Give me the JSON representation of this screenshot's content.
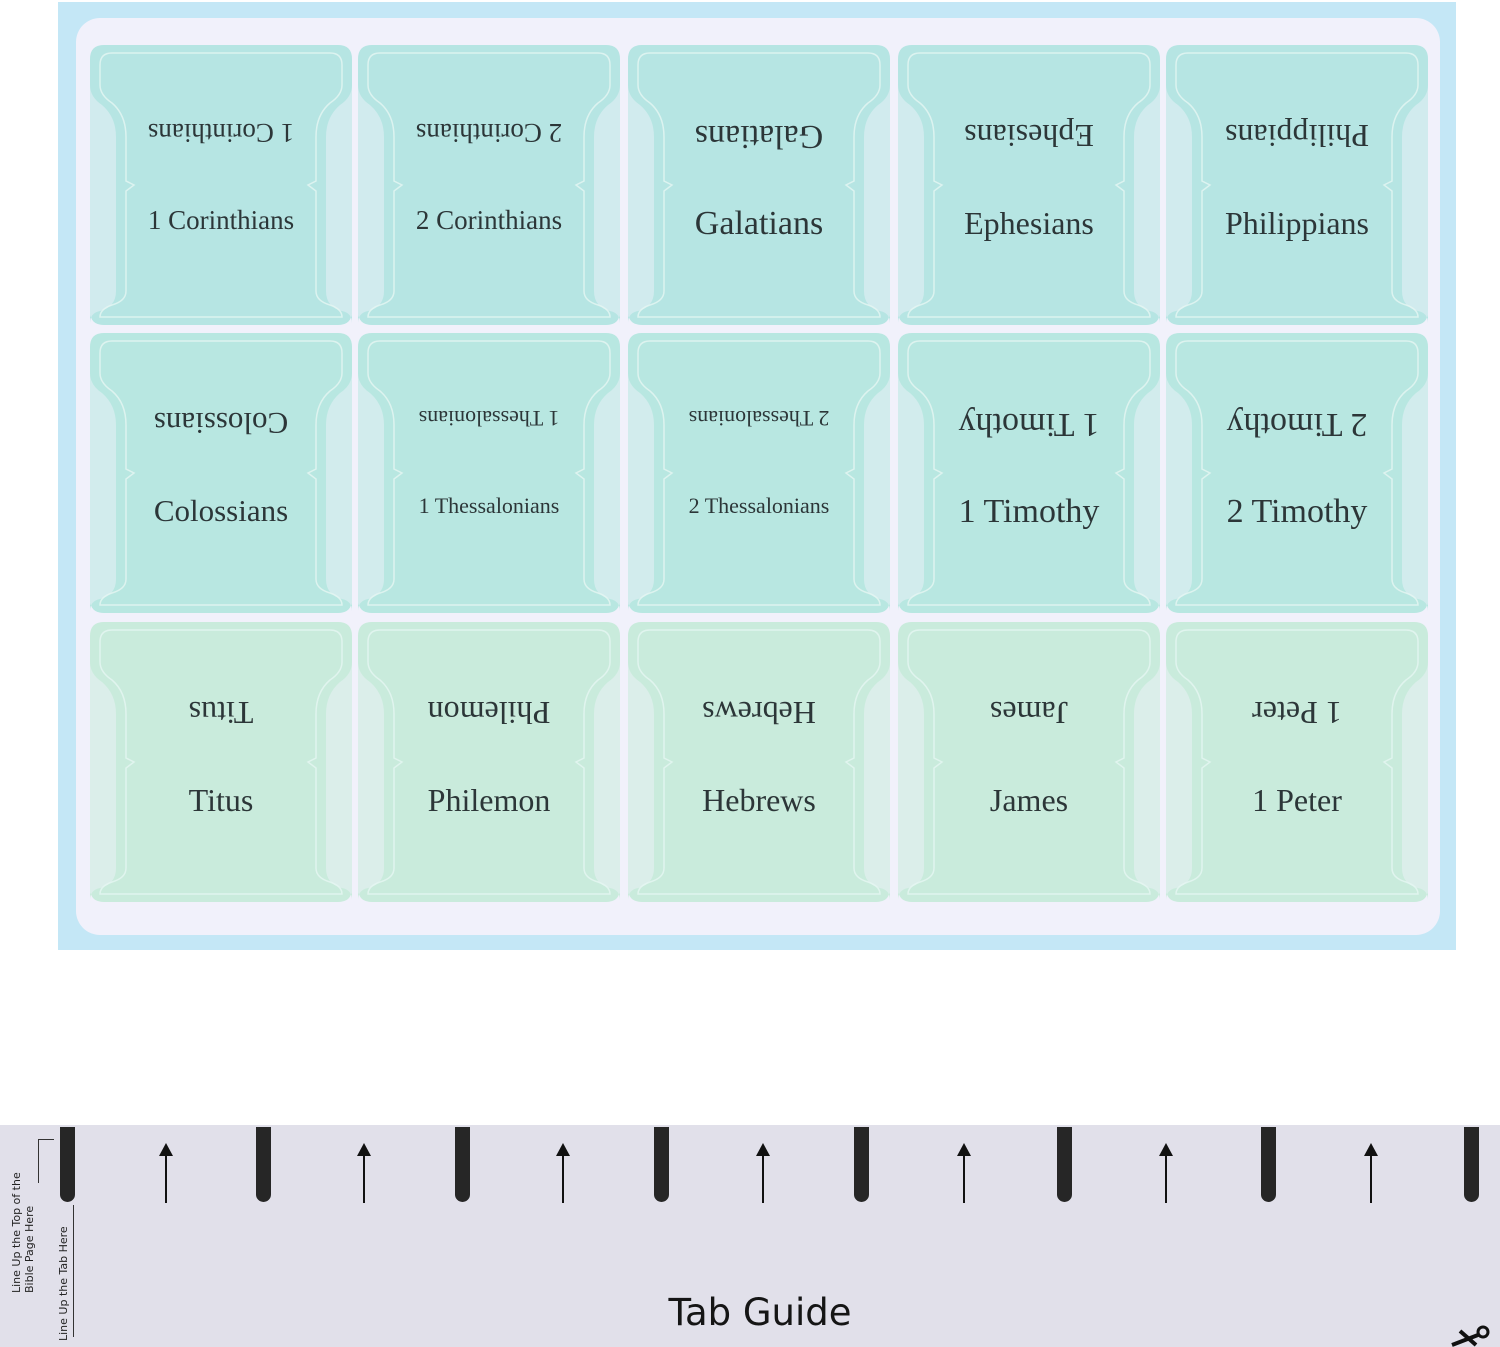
{
  "tabs": [
    "1 Corinthians",
    "2 Corinthians",
    "Galatians",
    "Ephesians",
    "Philippians",
    "Colossians",
    "1 Thessalonians",
    "2 Thessalonians",
    "1 Timothy",
    "2 Timothy",
    "Titus",
    "Philemon",
    "Hebrews",
    "James",
    "1 Peter"
  ],
  "row_colors": [
    "#b6e5e3",
    "#b8e7e1",
    "#c9ebdc"
  ],
  "guide": {
    "title": "Tab Guide",
    "top_line_note": "Line Up the Top of the",
    "top_line_note_2": "Bible Page Here",
    "tab_line_note": "Line Up the Tab Here",
    "scissors_icon": "scissors-icon"
  }
}
